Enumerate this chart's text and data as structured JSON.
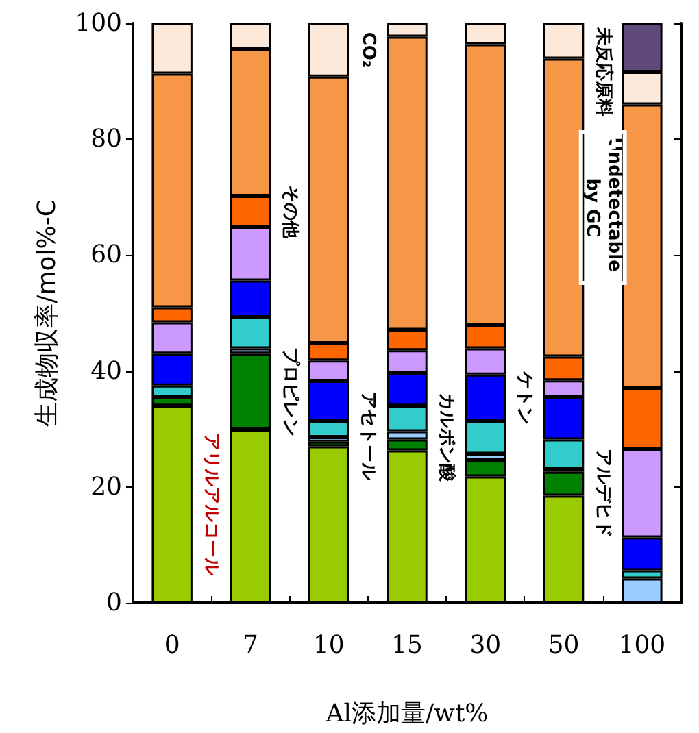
{
  "chart_data": {
    "type": "bar",
    "stacked": true,
    "xlabel": "Al添加量/wt%",
    "ylabel": "生成物収率/mol%-C",
    "categories": [
      "0",
      "7",
      "10",
      "15",
      "30",
      "50",
      "100"
    ],
    "ylim": [
      0,
      100
    ],
    "yticks": [
      0,
      20,
      40,
      60,
      80,
      100
    ],
    "grid": false,
    "legend": false,
    "series": [
      {
        "name": "アリルアルコール",
        "color": "#99cc00",
        "values": [
          34,
          29.9,
          27,
          26.3,
          21.8,
          18.5,
          null
        ]
      },
      {
        "name": "プロピレン",
        "color": "#008000",
        "values": [
          1.5,
          13.1,
          0.8,
          1.9,
          2.9,
          4.1,
          null
        ]
      },
      {
        "name": "アセトール",
        "color": "#99ccff",
        "values": [
          null,
          0.9,
          0.8,
          1.4,
          1.0,
          0.5,
          4.2
        ]
      },
      {
        "name": "カルボン酸",
        "color": "#33cccc",
        "values": [
          2,
          5.4,
          2.8,
          4.4,
          5.7,
          5.1,
          1.4
        ]
      },
      {
        "name": "ケトン",
        "color": "#0000ff",
        "values": [
          5.5,
          6.3,
          6.9,
          5.7,
          8.0,
          7.3,
          5.7
        ]
      },
      {
        "name": "アルデヒド",
        "color": "#cc99ff",
        "values": [
          5.4,
          9.2,
          3.5,
          3.9,
          4.5,
          2.9,
          15.2
        ]
      },
      {
        "name": "その他",
        "color": "#ff6600",
        "values": [
          2.6,
          5.4,
          3.0,
          3.5,
          4.0,
          4.1,
          10.6
        ]
      },
      {
        "name": "Undetectable by GC",
        "color": "#f79646",
        "values": [
          40.3,
          25.3,
          46,
          50.6,
          48.5,
          51.4,
          48.9
        ]
      },
      {
        "name": "CO₂",
        "color": "#fde9d9",
        "values": [
          8.7,
          4.5,
          9.2,
          2.3,
          3.6,
          6.2,
          5.6
        ]
      },
      {
        "name": "未反応原料",
        "color": "#604a7b",
        "values": [
          null,
          null,
          null,
          null,
          null,
          null,
          8.4
        ]
      }
    ]
  }
}
